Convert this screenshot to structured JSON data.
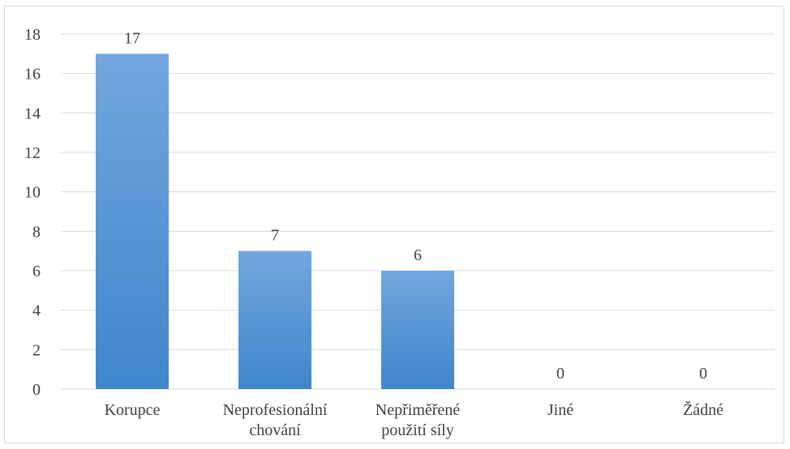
{
  "chart_data": {
    "type": "bar",
    "categories": [
      [
        "Korupce"
      ],
      [
        "Neprofesionální",
        "chování"
      ],
      [
        "Nepřiměřené",
        "použití síly"
      ],
      [
        "Jiné"
      ],
      [
        "Žádné"
      ]
    ],
    "values": [
      17,
      7,
      6,
      0,
      0
    ],
    "data_labels": [
      "17",
      "7",
      "6",
      "0",
      "0"
    ],
    "title": "",
    "xlabel": "",
    "ylabel": "",
    "ylim": [
      0,
      18
    ],
    "yticks": [
      "0",
      "2",
      "4",
      "6",
      "8",
      "10",
      "12",
      "14",
      "16",
      "18"
    ],
    "grid": true,
    "legend": "none",
    "colors": {
      "bar_top": "#72a7dd",
      "bar_bottom": "#3f86cc",
      "grid": "#d9d9d9",
      "text": "#404040"
    }
  }
}
